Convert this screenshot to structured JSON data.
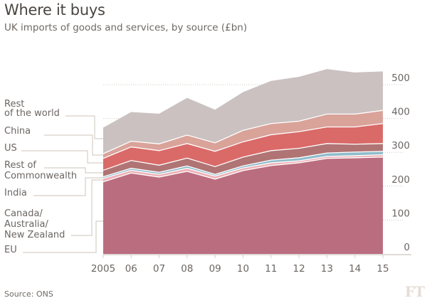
{
  "title": "Where it buys",
  "subtitle": "UK imports of goods and services, by source (£bn)",
  "source": "Source: ONS",
  "logo": "FT",
  "chart_data": {
    "type": "area",
    "stacked": true,
    "title": "Where it buys",
    "subtitle": "UK imports of goods and services, by source (£bn)",
    "xlabel": "",
    "ylabel": "",
    "ylim": [
      0,
      500
    ],
    "grid": true,
    "x": [
      2005,
      2006,
      2007,
      2008,
      2009,
      2010,
      2011,
      2012,
      2013,
      2014,
      2015
    ],
    "x_tick_labels": [
      "2005",
      "06",
      "07",
      "08",
      "09",
      "10",
      "11",
      "12",
      "13",
      "14",
      "15"
    ],
    "y_ticks": [
      0,
      100,
      200,
      300,
      400,
      500
    ],
    "y_tick_labels": [
      "0",
      "100",
      "200",
      "300",
      "400",
      "500"
    ],
    "legend_placement": "left",
    "series": [
      {
        "name": "EU",
        "label_lines": [
          "EU"
        ],
        "color": "#bb6d80",
        "values": [
          213,
          239,
          227,
          244,
          221,
          246,
          261,
          269,
          282,
          284,
          286
        ]
      },
      {
        "name": "Canada/Australia/New Zealand",
        "label_lines": [
          "Canada/",
          "Australia/",
          "New Zealand"
        ],
        "color": "#efb0b5",
        "values": [
          10,
          8,
          8,
          9,
          9,
          8,
          8,
          6,
          6,
          6,
          7
        ]
      },
      {
        "name": "India",
        "label_lines": [
          "India"
        ],
        "color": "#8fbccb",
        "values": [
          5,
          6,
          6,
          7,
          5,
          6,
          8,
          9,
          10,
          11,
          10
        ]
      },
      {
        "name": "Rest of Commonwealth",
        "label_lines": [
          "Rest of",
          "Commonwealth"
        ],
        "color": "#b07474",
        "values": [
          19,
          23,
          21,
          23,
          23,
          26,
          28,
          28,
          28,
          23,
          23
        ]
      },
      {
        "name": "US",
        "label_lines": [
          "US"
        ],
        "color": "#d96a68",
        "values": [
          35,
          40,
          43,
          43,
          45,
          45,
          47,
          49,
          49,
          51,
          59
        ]
      },
      {
        "name": "China",
        "label_lines": [
          "China"
        ],
        "color": "#d9a39a",
        "values": [
          14,
          17,
          20,
          25,
          25,
          34,
          33,
          31,
          38,
          38,
          39
        ]
      },
      {
        "name": "Rest of the world",
        "label_lines": [
          "Rest",
          "of the world"
        ],
        "color": "#cbc1c1",
        "values": [
          77,
          86,
          89,
          110,
          98,
          113,
          126,
          131,
          133,
          123,
          115
        ]
      }
    ]
  }
}
